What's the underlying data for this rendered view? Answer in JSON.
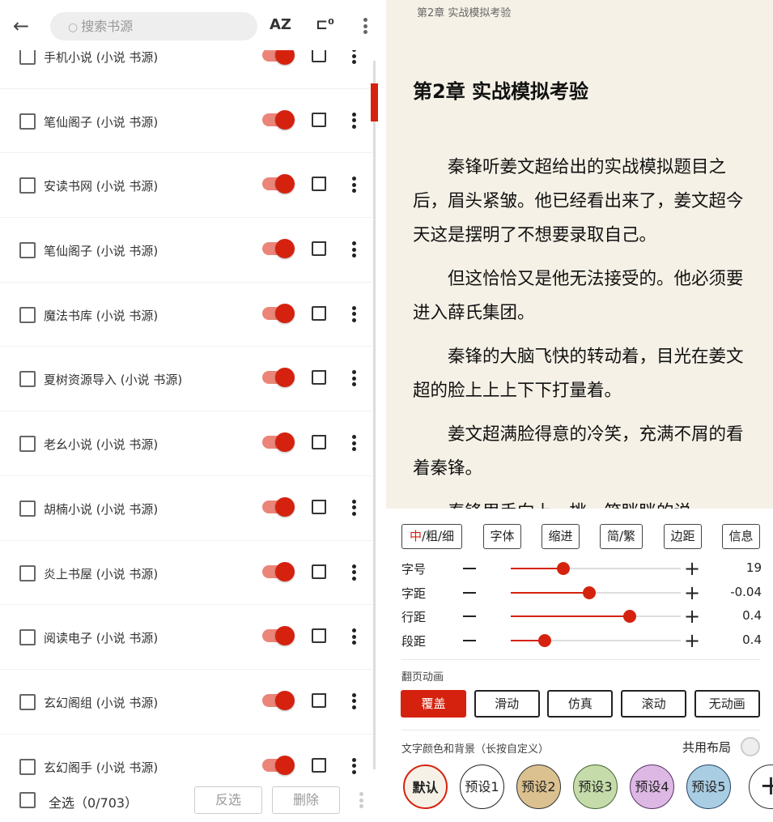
{
  "left": {
    "search_placeholder": "搜索书源",
    "rows": [
      {
        "label": "手机小说 (小说 书源)",
        "enabled": true
      },
      {
        "label": "笔仙阁子 (小说 书源)",
        "enabled": true
      },
      {
        "label": "安读书网 (小说 书源)",
        "enabled": true
      },
      {
        "label": "笔仙阁子 (小说 书源)",
        "enabled": true
      },
      {
        "label": "魔法书库 (小说 书源)",
        "enabled": true
      },
      {
        "label": "夏树资源导入 (小说 书源)",
        "enabled": true
      },
      {
        "label": "老幺小说 (小说 书源)",
        "enabled": true
      },
      {
        "label": "胡楠小说 (小说 书源)",
        "enabled": true
      },
      {
        "label": "炎上书屋 (小说 书源)",
        "enabled": true
      },
      {
        "label": "阅读电子 (小说 书源)",
        "enabled": true
      },
      {
        "label": "玄幻阁组 (小说 书源)",
        "enabled": true
      },
      {
        "label": "玄幻阁手 (小说 书源)",
        "enabled": true
      }
    ],
    "select_all": "全选（0/703）",
    "invert": "反选",
    "delete": "删除"
  },
  "reader": {
    "chapter_small": "第2章 实战模拟考验",
    "chapter_title": "第2章 实战模拟考验",
    "paragraphs": [
      "秦锋听姜文超给出的实战模拟题目之后，眉头紧皱。他已经看出来了，姜文超今天这是摆明了不想要录取自己。",
      "但这恰恰又是他无法接受的。他必须要进入薛氏集团。",
      "秦锋的大脑飞快的转动着，目光在姜文超的脸上上上下下打量着。",
      "姜文超满脸得意的冷笑，充满不屑的看着秦锋。",
      "秦锋甩手向上一挑，笑眯眯的说道：“如"
    ]
  },
  "panel": {
    "weight_first": "中",
    "weight_rest": "/粗/细",
    "tabs": [
      "字体",
      "缩进",
      "简/繁",
      "边距",
      "信息"
    ],
    "sliders": [
      {
        "label": "字号",
        "value": "19",
        "fraction": 0.31
      },
      {
        "label": "字距",
        "value": "-0.04",
        "fraction": 0.46
      },
      {
        "label": "行距",
        "value": "0.4",
        "fraction": 0.7
      },
      {
        "label": "段距",
        "value": "0.4",
        "fraction": 0.2
      }
    ],
    "anim_title": "翻页动画",
    "anims": [
      "覆盖",
      "滑动",
      "仿真",
      "滚动",
      "无动画"
    ],
    "anim_selected": "覆盖",
    "color_title": "文字颜色和背景（长按自定义）",
    "share_layout": "共用布局",
    "presets": [
      {
        "label": "默认",
        "bg": "#f5f1e6",
        "border": "#d5220f"
      },
      {
        "label": "预设1",
        "bg": "#ffffff",
        "border": "#222222"
      },
      {
        "label": "预设2",
        "bg": "#dcc190",
        "border": "#333333"
      },
      {
        "label": "预设3",
        "bg": "#c5dcaa",
        "border": "#446633"
      },
      {
        "label": "预设4",
        "bg": "#ddb8e4",
        "border": "#553366"
      },
      {
        "label": "预设5",
        "bg": "#a9cde3",
        "border": "#224466"
      }
    ],
    "accent": "#d5220f"
  }
}
